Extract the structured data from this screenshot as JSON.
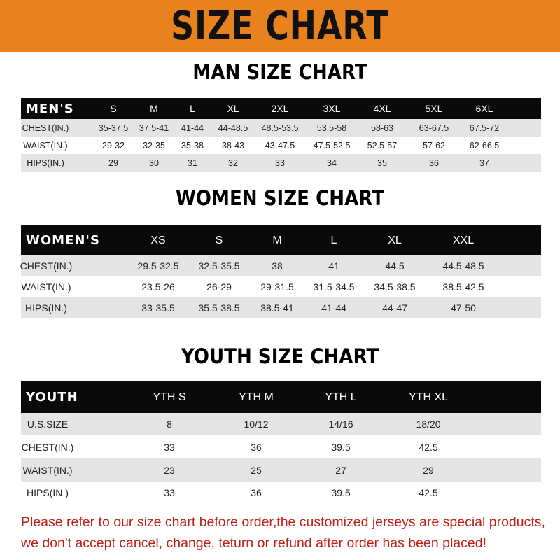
{
  "banner": "SIZE CHART",
  "colors": {
    "banner": "#E8821E",
    "header_row": "#0a0a0a",
    "stripe": "#e4e4e4",
    "note": "#c0201a"
  },
  "men": {
    "title": "MAN SIZE CHART",
    "header": [
      "MEN'S",
      "S",
      "M",
      "L",
      "XL",
      "2XL",
      "3XL",
      "4XL",
      "5XL",
      "6XL"
    ],
    "rows": [
      [
        "CHEST(IN.)",
        "35-37.5",
        "37.5-41",
        "41-44",
        "44-48.5",
        "48.5-53.5",
        "53.5-58",
        "58-63",
        "63-67.5",
        "67.5-72"
      ],
      [
        "WAIST(IN.)",
        "29-32",
        "32-35",
        "35-38",
        "38-43",
        "43-47.5",
        "47.5-52.5",
        "52.5-57",
        "57-62",
        "62-66.5"
      ],
      [
        "HIPS(IN.)",
        "29",
        "30",
        "31",
        "32",
        "33",
        "34",
        "35",
        "36",
        "37"
      ]
    ]
  },
  "women": {
    "title": "WOMEN SIZE CHART",
    "header": [
      "WOMEN'S",
      "XS",
      "S",
      "M",
      "L",
      "XL",
      "XXL"
    ],
    "rows": [
      [
        "CHEST(IN.)",
        "29.5-32.5",
        "32.5-35.5",
        "38",
        "41",
        "44.5",
        "44.5-48.5"
      ],
      [
        "WAIST(IN.)",
        "23.5-26",
        "26-29",
        "29-31.5",
        "31.5-34.5",
        "34.5-38.5",
        "38.5-42.5"
      ],
      [
        "HIPS(IN.)",
        "33-35.5",
        "35.5-38.5",
        "38.5-41",
        "41-44",
        "44-47",
        "47-50"
      ]
    ]
  },
  "youth": {
    "title": "YOUTH SIZE CHART",
    "header": [
      "YOUTH",
      "YTH S",
      "YTH M",
      "YTH L",
      "YTH XL"
    ],
    "rows": [
      [
        "U.S.SIZE",
        "8",
        "10/12",
        "14/16",
        "18/20"
      ],
      [
        "CHEST(IN.)",
        "33",
        "36",
        "39.5",
        "42.5"
      ],
      [
        "WAIST(IN.)",
        "23",
        "25",
        "27",
        "29"
      ],
      [
        "HIPS(IN.)",
        "33",
        "36",
        "39.5",
        "42.5"
      ]
    ]
  },
  "note": [
    "Please refer to our size chart before order,the customized jerseys are special products,",
    "we don't accept cancel, change, teturn or refund after order has been placed!"
  ]
}
